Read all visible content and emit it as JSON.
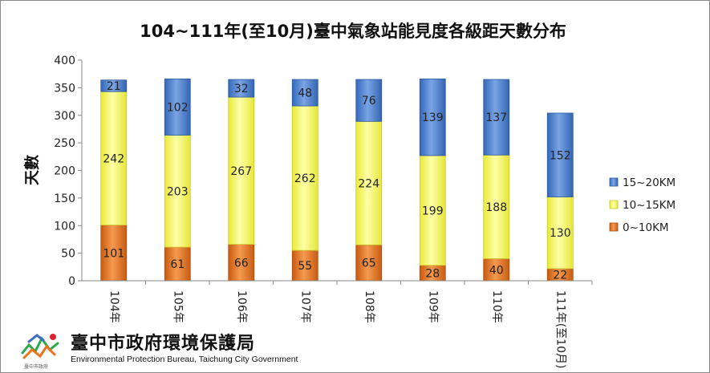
{
  "chart_data": {
    "type": "bar",
    "stacked": true,
    "title": "104~111年(至10月)臺中氣象站能見度各級距天數分布",
    "ylabel": "天數",
    "xlabel": "",
    "ylim": [
      0,
      400
    ],
    "yticks": [
      0,
      50,
      100,
      150,
      200,
      250,
      300,
      350,
      400
    ],
    "grid": false,
    "legend_position": "right",
    "categories": [
      "104年",
      "105年",
      "106年",
      "107年",
      "108年",
      "109年",
      "110年",
      "111年(至10月)"
    ],
    "series": [
      {
        "name": "0~10KM",
        "color": "#e8741c",
        "values": [
          101,
          61,
          66,
          55,
          65,
          28,
          40,
          22
        ]
      },
      {
        "name": "10~15KM",
        "color": "#ffff66",
        "values": [
          242,
          203,
          267,
          262,
          224,
          199,
          188,
          130
        ]
      },
      {
        "name": "15~20KM",
        "color": "#4a7fd0",
        "values": [
          21,
          102,
          32,
          48,
          76,
          139,
          137,
          152
        ]
      }
    ],
    "legend_order": [
      "15~20KM",
      "10~15KM",
      "0~10KM"
    ]
  },
  "footer": {
    "org_name": "臺中市政府環境保護局",
    "org_name_en": "Environmental Protection Bureau, Taichung City Government",
    "logo_text": "臺中市政府"
  }
}
